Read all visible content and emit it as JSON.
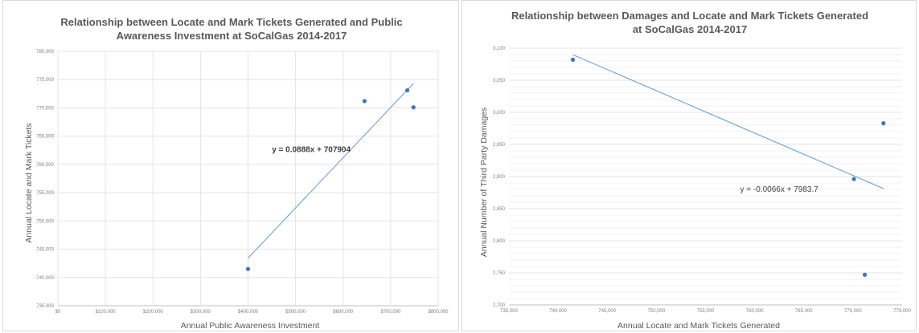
{
  "chart_data": [
    {
      "type": "scatter",
      "title": [
        "Relationship between Locate and Mark Tickets Generated and Public",
        "Awareness Investment at SoCalGas 2014-2017"
      ],
      "xlabel": "Annual Public Awareness Investment",
      "ylabel": "Annual Locate and Mark Tickets",
      "xlim": [
        0,
        800000
      ],
      "ylim": [
        735000,
        780000
      ],
      "xticks": [
        "$0",
        "$100,000",
        "$200,000",
        "$300,000",
        "$400,000",
        "$500,000",
        "$600,000",
        "$700,000",
        "$800,000"
      ],
      "yticks": [
        "735,000",
        "740,000",
        "745,000",
        "750,000",
        "755,000",
        "760,000",
        "765,000",
        "770,000",
        "775,000",
        "780,000"
      ],
      "vertical_grid": true,
      "points": [
        {
          "x": 400000,
          "y": 741500
        },
        {
          "x": 645000,
          "y": 771200
        },
        {
          "x": 735000,
          "y": 773100
        },
        {
          "x": 748000,
          "y": 770100
        }
      ],
      "trendline": {
        "slope": 0.0888,
        "intercept": 707904,
        "x_range": [
          400000,
          748000
        ]
      },
      "equation": "y = 0.0888x + 707904",
      "equation_position": {
        "x": 533000,
        "y": 762200
      },
      "colors": {
        "point": "#4472c4",
        "trendline": "#5b9bd5",
        "grid": "#e3e3e3",
        "text": "#595959"
      }
    },
    {
      "type": "scatter",
      "title": [
        "Relationship between Damages and Locate and Mark Tickets Generated",
        "at SoCalGas 2014-2017"
      ],
      "xlabel": "Annual Locate and Mark Tickets Generated",
      "ylabel": "Annual Number of Third Party Damages",
      "xlim": [
        735000,
        775000
      ],
      "ylim": [
        2700,
        3100
      ],
      "xticks": [
        "735,000",
        "740,000",
        "745,000",
        "750,000",
        "755,000",
        "760,000",
        "765,000",
        "770,000",
        "775,000"
      ],
      "yticks": [
        "2,700",
        "2,750",
        "2,800",
        "2,850",
        "2,900",
        "2,950",
        "3,000",
        "3,050",
        "3,100"
      ],
      "vertical_grid": false,
      "points": [
        {
          "x": 741500,
          "y": 3082
        },
        {
          "x": 770100,
          "y": 2896
        },
        {
          "x": 771200,
          "y": 2747
        },
        {
          "x": 773100,
          "y": 2983
        }
      ],
      "trendline": {
        "slope": -0.0066,
        "intercept": 7983.7,
        "x_range": [
          741500,
          773100
        ]
      },
      "equation": "y = -0.0066x + 7983.7",
      "equation_position": {
        "x": 762500,
        "y": 2876
      },
      "colors": {
        "point": "#4472c4",
        "trendline": "#5b9bd5",
        "grid": "#e3e3e3",
        "text": "#595959"
      }
    }
  ]
}
